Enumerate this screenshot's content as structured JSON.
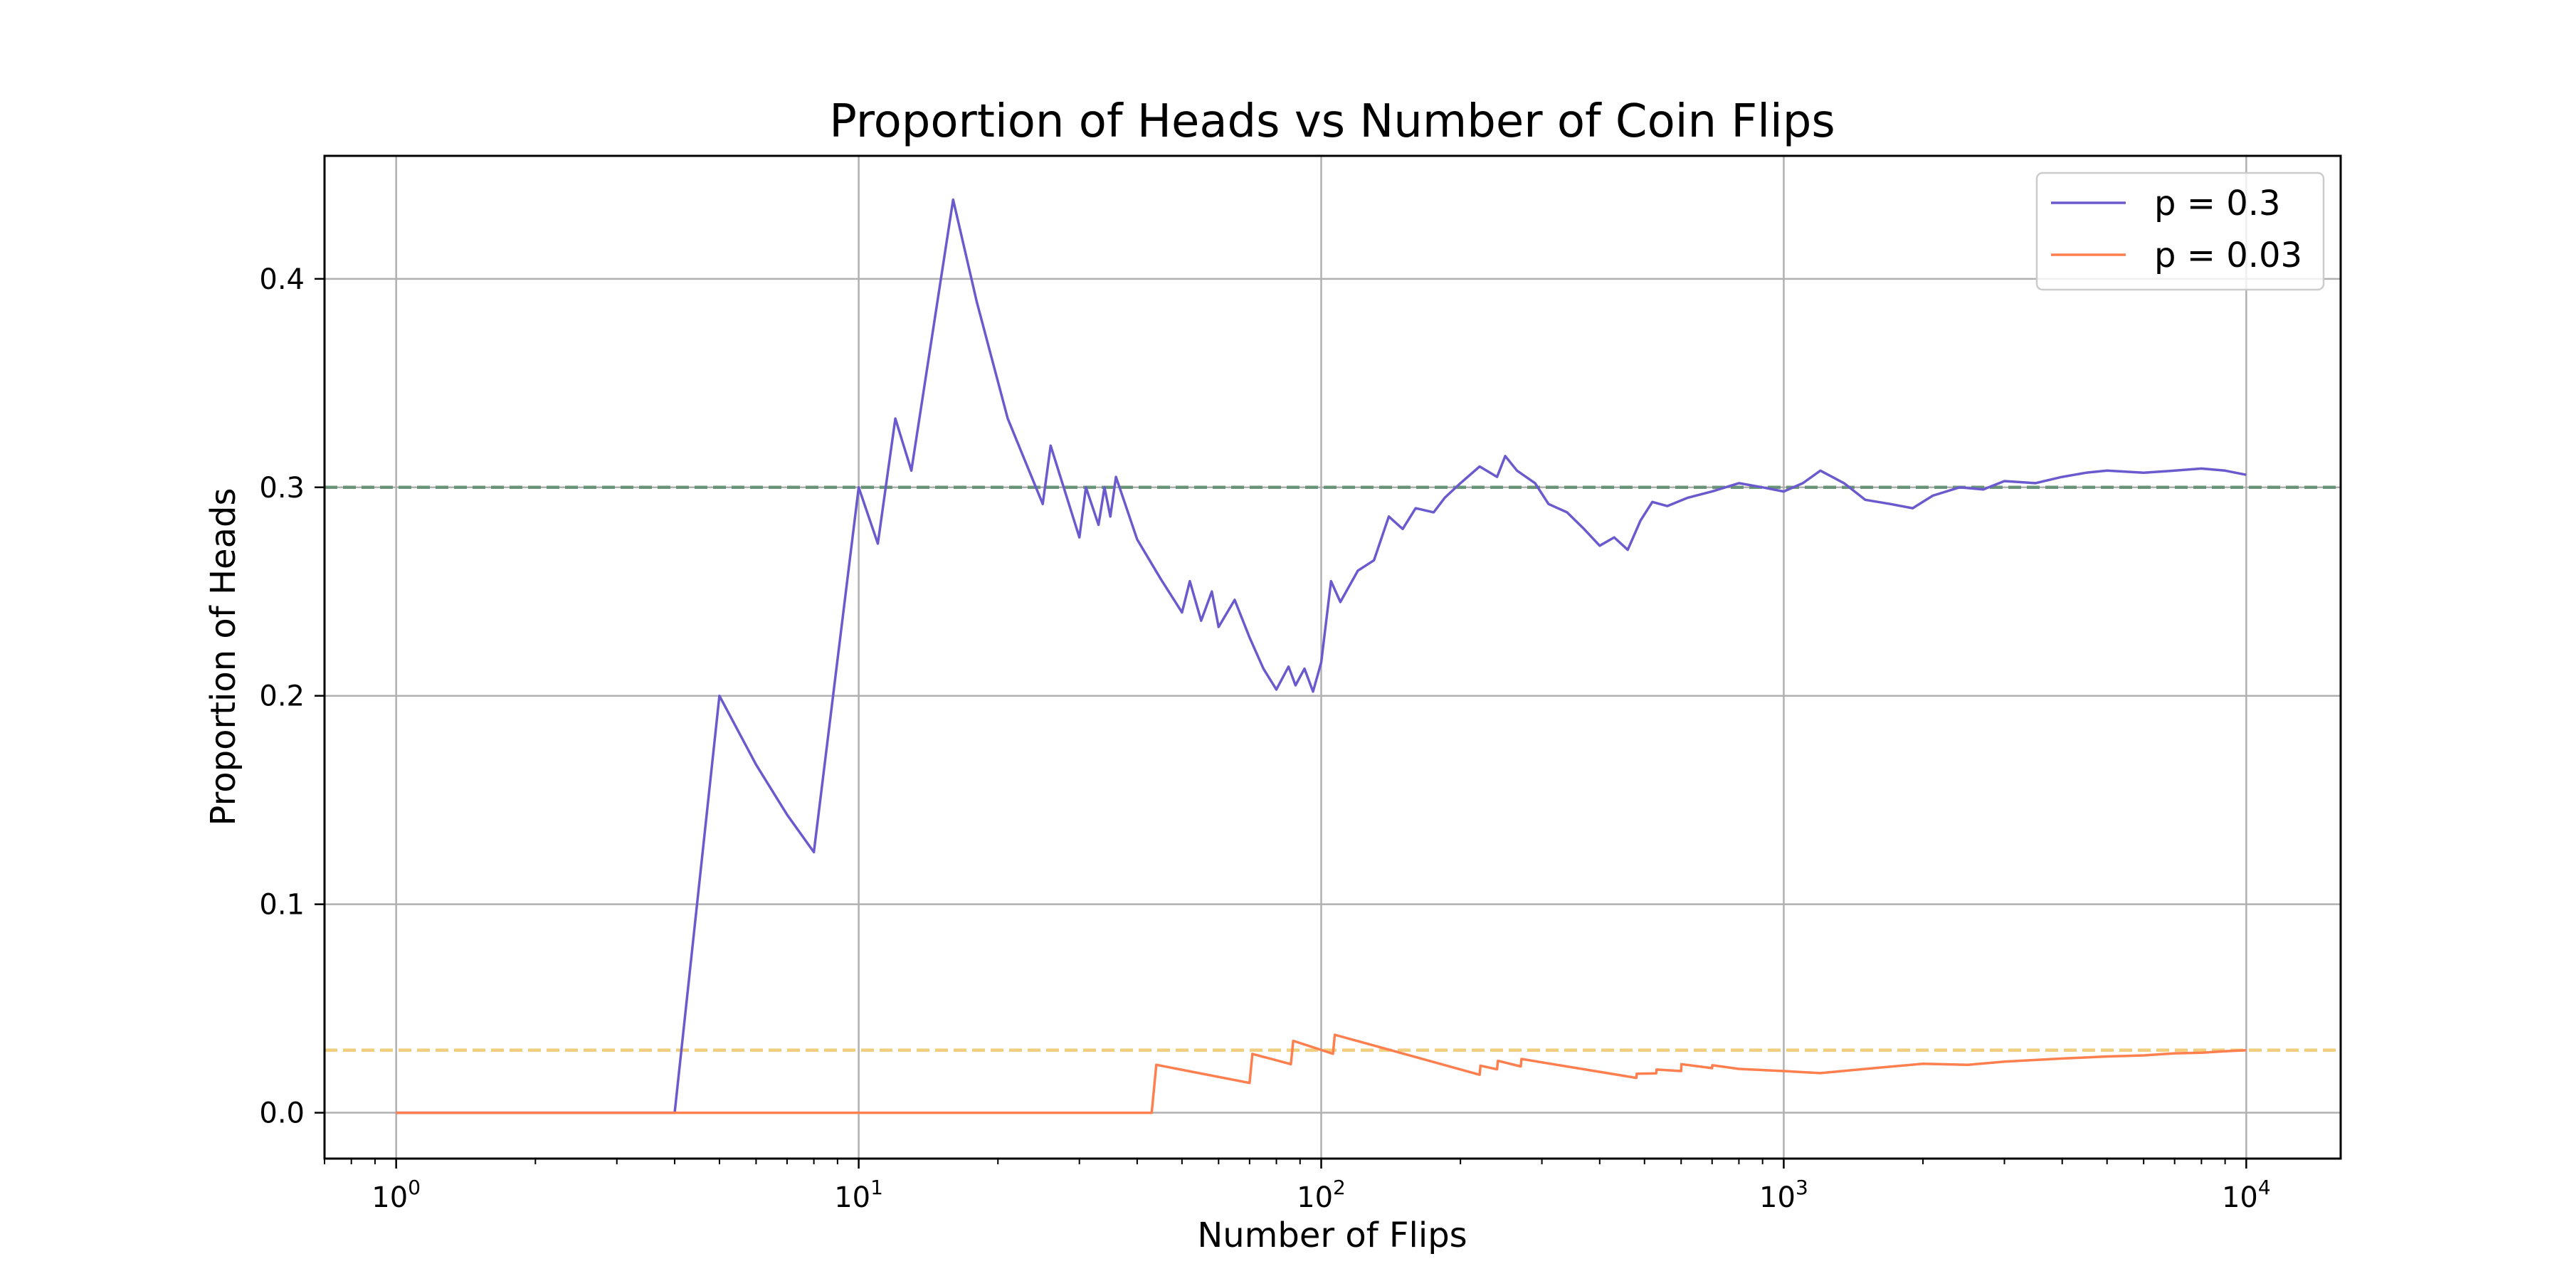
{
  "chart_data": {
    "type": "line",
    "title": "Proportion of Heads vs Number of Coin Flips",
    "xlabel": "Number of Flips",
    "ylabel": "Proportion of Heads",
    "xscale": "log",
    "xlim": [
      0.7,
      16000
    ],
    "ylim": [
      -0.022,
      0.459
    ],
    "grid": true,
    "legend_position": "top-right",
    "x_ticks": [
      {
        "value": 1,
        "base": "10",
        "exp": "0"
      },
      {
        "value": 10,
        "base": "10",
        "exp": "1"
      },
      {
        "value": 100,
        "base": "10",
        "exp": "2"
      },
      {
        "value": 1000,
        "base": "10",
        "exp": "3"
      },
      {
        "value": 10000,
        "base": "10",
        "exp": "4"
      }
    ],
    "y_ticks": [
      {
        "value": 0.0,
        "label": "0.0"
      },
      {
        "value": 0.1,
        "label": "0.1"
      },
      {
        "value": 0.2,
        "label": "0.2"
      },
      {
        "value": 0.3,
        "label": "0.3"
      },
      {
        "value": 0.4,
        "label": "0.4"
      }
    ],
    "reference_lines": [
      {
        "y": 0.3,
        "color": "#5f8f6f",
        "style": "dashed"
      },
      {
        "y": 0.03,
        "color": "#f0c870",
        "style": "dashed"
      }
    ],
    "series": [
      {
        "name": "p = 0.3",
        "color": "#6a5acd",
        "x": [
          1,
          2,
          3,
          4,
          5,
          6,
          7,
          8,
          10,
          11,
          12,
          13,
          16,
          18,
          21,
          25,
          26,
          30,
          31,
          33,
          34,
          35,
          36,
          40,
          45,
          50,
          52,
          55,
          58,
          60,
          65,
          70,
          75,
          80,
          85,
          88,
          92,
          96,
          100,
          105,
          110,
          120,
          130,
          140,
          150,
          160,
          175,
          185,
          200,
          220,
          240,
          250,
          265,
          290,
          310,
          340,
          370,
          400,
          430,
          460,
          490,
          520,
          560,
          620,
          700,
          800,
          900,
          1000,
          1100,
          1200,
          1350,
          1500,
          1700,
          1900,
          2100,
          2400,
          2700,
          3000,
          3500,
          4000,
          4500,
          5000,
          6000,
          7000,
          8000,
          9000,
          10000
        ],
        "y": [
          0.0,
          0.0,
          0.0,
          0.0,
          0.2,
          0.167,
          0.143,
          0.125,
          0.3,
          0.273,
          0.333,
          0.308,
          0.438,
          0.389,
          0.333,
          0.292,
          0.32,
          0.276,
          0.3,
          0.282,
          0.3,
          0.286,
          0.305,
          0.275,
          0.256,
          0.24,
          0.255,
          0.236,
          0.25,
          0.233,
          0.246,
          0.228,
          0.213,
          0.203,
          0.214,
          0.205,
          0.213,
          0.202,
          0.216,
          0.255,
          0.245,
          0.26,
          0.265,
          0.286,
          0.28,
          0.29,
          0.288,
          0.295,
          0.302,
          0.31,
          0.305,
          0.315,
          0.308,
          0.302,
          0.292,
          0.288,
          0.28,
          0.272,
          0.276,
          0.27,
          0.284,
          0.293,
          0.291,
          0.295,
          0.298,
          0.302,
          0.3,
          0.298,
          0.302,
          0.308,
          0.302,
          0.294,
          0.292,
          0.29,
          0.296,
          0.3,
          0.299,
          0.303,
          0.302,
          0.305,
          0.307,
          0.308,
          0.307,
          0.308,
          0.309,
          0.308,
          0.306
        ]
      },
      {
        "name": "p = 0.03",
        "color": "#ff7f4f",
        "x": [
          1,
          43,
          44,
          70,
          71,
          86,
          87,
          106,
          107,
          220,
          221,
          240,
          241,
          270,
          271,
          480,
          481,
          530,
          531,
          600,
          601,
          700,
          701,
          800,
          1000,
          1200,
          1500,
          2000,
          2500,
          3000,
          4000,
          5000,
          6000,
          7000,
          8000,
          9000,
          10000
        ],
        "y": [
          0.0,
          0.0,
          0.023,
          0.0143,
          0.0282,
          0.0233,
          0.0345,
          0.0283,
          0.0374,
          0.0182,
          0.0226,
          0.0208,
          0.0249,
          0.0222,
          0.0258,
          0.0167,
          0.0187,
          0.0189,
          0.0207,
          0.02,
          0.0233,
          0.0214,
          0.0228,
          0.021,
          0.02,
          0.019,
          0.021,
          0.0235,
          0.023,
          0.0245,
          0.026,
          0.027,
          0.0275,
          0.0285,
          0.0288,
          0.0295,
          0.03
        ]
      }
    ]
  }
}
